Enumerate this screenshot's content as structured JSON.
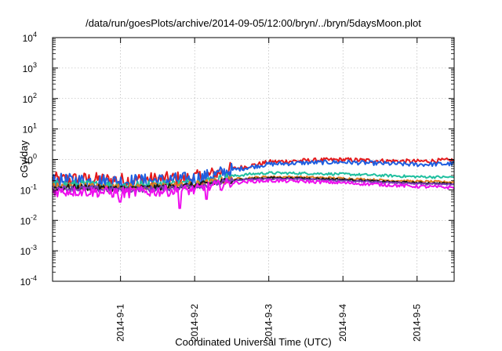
{
  "chart_data": {
    "type": "line",
    "title": "/data/run/goesPlots/archive/2014-09-05/12:00/bryn/../bryn/5daysMoon.plot",
    "xlabel": "Coordinated Universal Time (UTC)",
    "ylabel": "cGy/day",
    "yscale": "log",
    "ylim": [
      0.0001,
      10000
    ],
    "y_ticks": [
      {
        "value": 0.0001,
        "base": "10",
        "exp": "-4"
      },
      {
        "value": 0.001,
        "base": "10",
        "exp": "-3"
      },
      {
        "value": 0.01,
        "base": "10",
        "exp": "-2"
      },
      {
        "value": 0.1,
        "base": "10",
        "exp": "-1"
      },
      {
        "value": 1,
        "base": "10",
        "exp": "0"
      },
      {
        "value": 10,
        "base": "10",
        "exp": "1"
      },
      {
        "value": 100,
        "base": "10",
        "exp": "2"
      },
      {
        "value": 1000,
        "base": "10",
        "exp": "3"
      },
      {
        "value": 10000,
        "base": "10",
        "exp": "4"
      }
    ],
    "x_start": "2014-08-31 02:00",
    "x_end": "2014-09-05 12:00",
    "x_ticks": [
      {
        "label": "2014-9-1",
        "date": "2014-09-01 00:00"
      },
      {
        "label": "2014-9-2",
        "date": "2014-09-02 00:00"
      },
      {
        "label": "2014-9-3",
        "date": "2014-09-03 00:00"
      },
      {
        "label": "2014-9-4",
        "date": "2014-09-04 00:00"
      },
      {
        "label": "2014-9-5",
        "date": "2014-09-05 00:00"
      }
    ],
    "grid": true,
    "series": [
      {
        "color": "#e41a1c",
        "noise": 0.24,
        "points": [
          [
            "2014-08-31 02:00",
            0.22
          ],
          [
            "2014-08-31 12:00",
            0.22
          ],
          [
            "2014-09-01 00:00",
            0.21
          ],
          [
            "2014-09-01 12:00",
            0.22
          ],
          [
            "2014-09-02 00:00",
            0.25
          ],
          [
            "2014-09-02 06:00",
            0.33
          ],
          [
            "2014-09-02 12:00",
            0.48
          ],
          [
            "2014-09-02 18:00",
            0.62
          ],
          [
            "2014-09-03 00:00",
            0.82
          ],
          [
            "2014-09-03 12:00",
            0.92
          ],
          [
            "2014-09-04 00:00",
            0.98
          ],
          [
            "2014-09-04 12:00",
            0.9
          ],
          [
            "2014-09-05 00:00",
            0.86
          ],
          [
            "2014-09-05 12:00",
            0.95
          ]
        ]
      },
      {
        "color": "#1f5fe0",
        "noise": 0.24,
        "points": [
          [
            "2014-08-31 02:00",
            0.2
          ],
          [
            "2014-08-31 12:00",
            0.2
          ],
          [
            "2014-09-01 00:00",
            0.19
          ],
          [
            "2014-09-01 12:00",
            0.2
          ],
          [
            "2014-09-02 00:00",
            0.23
          ],
          [
            "2014-09-02 06:00",
            0.3
          ],
          [
            "2014-09-02 12:00",
            0.44
          ],
          [
            "2014-09-02 18:00",
            0.56
          ],
          [
            "2014-09-03 00:00",
            0.7
          ],
          [
            "2014-09-03 12:00",
            0.78
          ],
          [
            "2014-09-04 00:00",
            0.82
          ],
          [
            "2014-09-04 12:00",
            0.74
          ],
          [
            "2014-09-05 00:00",
            0.68
          ],
          [
            "2014-09-05 12:00",
            0.72
          ]
        ]
      },
      {
        "color": "#1fbf9f",
        "noise": 0.14,
        "points": [
          [
            "2014-08-31 02:00",
            0.15
          ],
          [
            "2014-08-31 12:00",
            0.15
          ],
          [
            "2014-09-01 00:00",
            0.14
          ],
          [
            "2014-09-01 12:00",
            0.15
          ],
          [
            "2014-09-02 00:00",
            0.17
          ],
          [
            "2014-09-02 06:00",
            0.21
          ],
          [
            "2014-09-02 12:00",
            0.28
          ],
          [
            "2014-09-02 18:00",
            0.33
          ],
          [
            "2014-09-03 00:00",
            0.36
          ],
          [
            "2014-09-03 12:00",
            0.35
          ],
          [
            "2014-09-04 00:00",
            0.33
          ],
          [
            "2014-09-04 12:00",
            0.3
          ],
          [
            "2014-09-05 00:00",
            0.27
          ],
          [
            "2014-09-05 12:00",
            0.26
          ]
        ]
      },
      {
        "color": "#e07b20",
        "noise": 0.12,
        "points": [
          [
            "2014-08-31 02:00",
            0.13
          ],
          [
            "2014-08-31 12:00",
            0.13
          ],
          [
            "2014-09-01 00:00",
            0.12
          ],
          [
            "2014-09-01 12:00",
            0.13
          ],
          [
            "2014-09-02 00:00",
            0.15
          ],
          [
            "2014-09-02 06:00",
            0.18
          ],
          [
            "2014-09-02 12:00",
            0.22
          ],
          [
            "2014-09-02 18:00",
            0.25
          ],
          [
            "2014-09-03 00:00",
            0.27
          ],
          [
            "2014-09-03 12:00",
            0.26
          ],
          [
            "2014-09-04 00:00",
            0.24
          ],
          [
            "2014-09-04 12:00",
            0.21
          ],
          [
            "2014-09-05 00:00",
            0.19
          ],
          [
            "2014-09-05 12:00",
            0.18
          ]
        ]
      },
      {
        "color": "#1a1a1a",
        "noise": 0.1,
        "points": [
          [
            "2014-08-31 02:00",
            0.12
          ],
          [
            "2014-08-31 12:00",
            0.12
          ],
          [
            "2014-09-01 00:00",
            0.11
          ],
          [
            "2014-09-01 12:00",
            0.12
          ],
          [
            "2014-09-02 00:00",
            0.14
          ],
          [
            "2014-09-02 06:00",
            0.17
          ],
          [
            "2014-09-02 12:00",
            0.21
          ],
          [
            "2014-09-02 18:00",
            0.23
          ],
          [
            "2014-09-03 00:00",
            0.25
          ],
          [
            "2014-09-03 12:00",
            0.24
          ],
          [
            "2014-09-04 00:00",
            0.22
          ],
          [
            "2014-09-04 12:00",
            0.19
          ],
          [
            "2014-09-05 00:00",
            0.17
          ],
          [
            "2014-09-05 12:00",
            0.16
          ]
        ]
      },
      {
        "color": "#7b3fb5",
        "noise": 0.1,
        "points": [
          [
            "2014-08-31 02:00",
            0.11
          ],
          [
            "2014-08-31 12:00",
            0.11
          ],
          [
            "2014-09-01 00:00",
            0.1
          ],
          [
            "2014-09-01 12:00",
            0.11
          ],
          [
            "2014-09-02 00:00",
            0.13
          ],
          [
            "2014-09-02 06:00",
            0.16
          ],
          [
            "2014-09-02 12:00",
            0.2
          ],
          [
            "2014-09-02 18:00",
            0.22
          ],
          [
            "2014-09-03 00:00",
            0.23
          ],
          [
            "2014-09-03 12:00",
            0.22
          ],
          [
            "2014-09-04 00:00",
            0.2
          ],
          [
            "2014-09-04 12:00",
            0.18
          ],
          [
            "2014-09-05 00:00",
            0.16
          ],
          [
            "2014-09-05 12:00",
            0.15
          ]
        ]
      },
      {
        "color": "#ee10ee",
        "noise": 0.18,
        "dips": [
          [
            "2014-09-01 00:00",
            0.04
          ],
          [
            "2014-09-01 19:00",
            0.025
          ],
          [
            "2014-09-02 04:00",
            0.05
          ]
        ],
        "points": [
          [
            "2014-08-31 02:00",
            0.09
          ],
          [
            "2014-08-31 12:00",
            0.09
          ],
          [
            "2014-09-01 00:00",
            0.08
          ],
          [
            "2014-09-01 12:00",
            0.09
          ],
          [
            "2014-09-02 00:00",
            0.1
          ],
          [
            "2014-09-02 06:00",
            0.13
          ],
          [
            "2014-09-02 12:00",
            0.17
          ],
          [
            "2014-09-02 18:00",
            0.19
          ],
          [
            "2014-09-03 00:00",
            0.2
          ],
          [
            "2014-09-03 12:00",
            0.19
          ],
          [
            "2014-09-04 00:00",
            0.17
          ],
          [
            "2014-09-04 12:00",
            0.15
          ],
          [
            "2014-09-05 00:00",
            0.13
          ],
          [
            "2014-09-05 12:00",
            0.12
          ]
        ]
      }
    ]
  }
}
